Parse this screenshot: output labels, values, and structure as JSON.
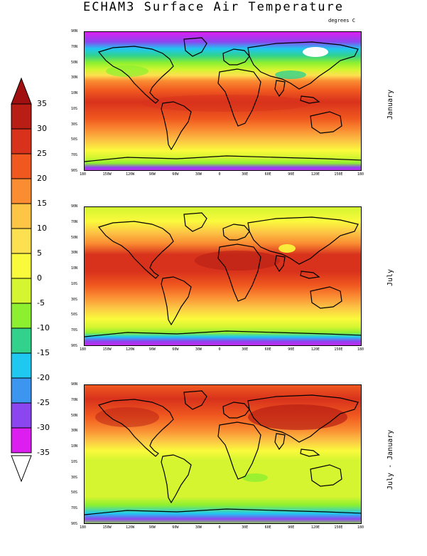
{
  "title": "ECHAM3 Surface Air Temperature",
  "units": "degrees C",
  "panels": [
    {
      "label": "January"
    },
    {
      "label": "July"
    },
    {
      "label": "July - January"
    }
  ],
  "lat_ticks": [
    "90N",
    "70N",
    "50N",
    "30N",
    "10N",
    "10S",
    "30S",
    "50S",
    "70S",
    "90S"
  ],
  "lon_ticks": [
    "180",
    "150W",
    "120W",
    "90W",
    "60W",
    "30W",
    "0",
    "30E",
    "60E",
    "90E",
    "120E",
    "150E",
    "180"
  ],
  "colorbar": {
    "labels": [
      "35",
      "30",
      "25",
      "20",
      "15",
      "10",
      "5",
      "0",
      "-5",
      "-10",
      "-15",
      "-20",
      "-25",
      "-30",
      "-35"
    ],
    "colors": [
      "#b81e14",
      "#d8321c",
      "#f0581f",
      "#fa8c32",
      "#fcc545",
      "#fde050",
      "#fafa3c",
      "#d4f530",
      "#8cf030",
      "#32d28c",
      "#1ec8f0",
      "#3c96f0",
      "#8c46f0",
      "#dc1ef0"
    ]
  }
}
